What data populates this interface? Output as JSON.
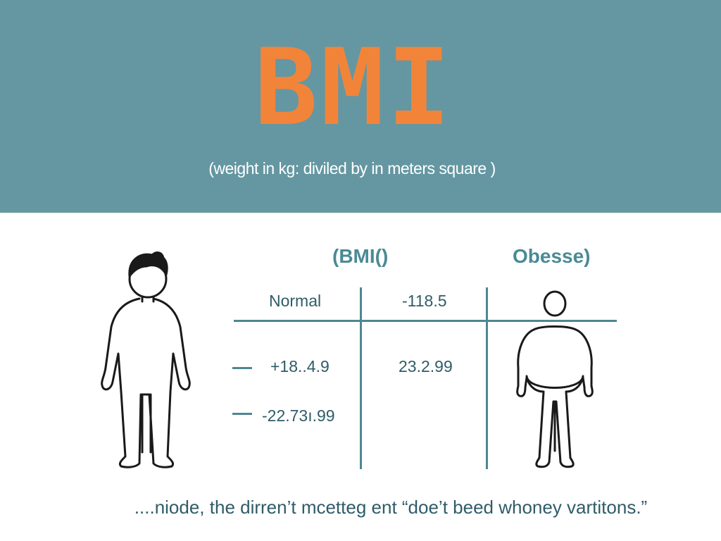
{
  "header": {
    "title": "BMI",
    "subtitle": "(weight in kg: diviled by in meters square )"
  },
  "table": {
    "heading_left": "(BMI()",
    "heading_right": "Obesse)",
    "rows": [
      {
        "label": "Normal",
        "value": "-118.5"
      },
      {
        "label": "+18..4.9",
        "value": "23.2.99"
      },
      {
        "label": "-22.73ı.99",
        "value": ""
      }
    ]
  },
  "figures": {
    "left_icon": "slim-person-icon",
    "right_icon": "obese-person-icon"
  },
  "colors": {
    "banner": "#6497a2",
    "title": "#f2843a",
    "accent": "#4a8a94"
  },
  "footer": {
    "caption": "....niode, the dirren’t mcetteg ent “doe’t beed whoney vartitons.”"
  }
}
